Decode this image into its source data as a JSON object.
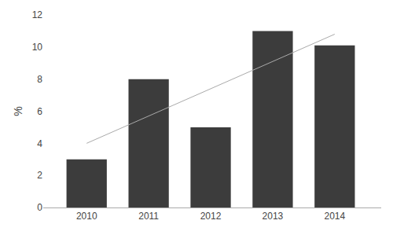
{
  "chart_data": {
    "type": "bar",
    "x": [
      2010,
      2011,
      2012,
      2013,
      2014
    ],
    "values": [
      3.0,
      8.0,
      5.0,
      11.0,
      10.1
    ],
    "color": "#3c3c3c",
    "trend": {
      "x": [
        2010,
        2014
      ],
      "values": [
        4.0,
        10.8
      ],
      "color": "#aaaaaa"
    },
    "ylabel": "%",
    "xlim": [
      2009.3,
      2014.75
    ],
    "xticks": [
      2010,
      2011,
      2012,
      2013,
      2014
    ],
    "ylim": [
      0,
      12
    ],
    "yticks": [
      0,
      2,
      4,
      6,
      8,
      10,
      12
    ],
    "grid": false
  }
}
